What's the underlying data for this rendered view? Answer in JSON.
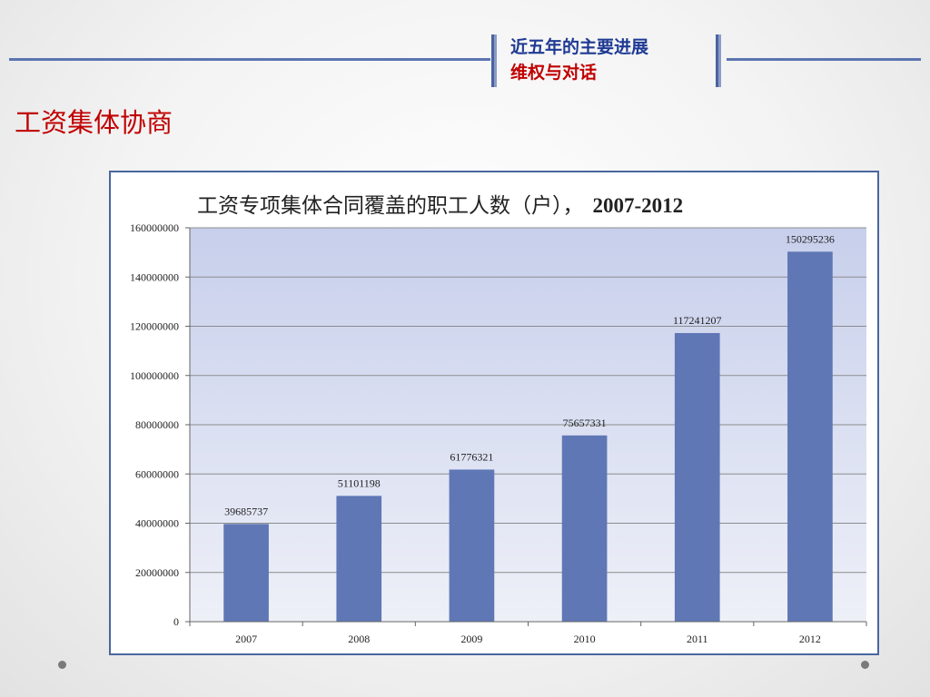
{
  "header": {
    "line1": "近五年的主要进展",
    "line2": "维权与对话",
    "line1_color": "#1f3a93",
    "line2_color": "#c00000"
  },
  "section_title": "工资集体协商",
  "colors": {
    "accent_line": "#5b74b0",
    "bar": "#5f77b5",
    "frame_border": "#4a66a0"
  },
  "chart_data": {
    "type": "bar",
    "title": "工资专项集体合同覆盖的职工人数（户），",
    "title_years": "2007-2012",
    "categories": [
      "2007",
      "2008",
      "2009",
      "2010",
      "2011",
      "2012"
    ],
    "values": [
      39685737,
      51101198,
      61776321,
      75657331,
      117241207,
      150295236
    ],
    "data_labels": [
      "39685737",
      "51101198",
      "61776321",
      "75657331",
      "117241207",
      "150295236"
    ],
    "y_ticks": [
      "0",
      "20000000",
      "40000000",
      "60000000",
      "80000000",
      "100000000",
      "120000000",
      "140000000",
      "160000000"
    ],
    "ylim": [
      0,
      160000000
    ],
    "xlabel": "",
    "ylabel": "",
    "grid": true,
    "legend": "none"
  }
}
